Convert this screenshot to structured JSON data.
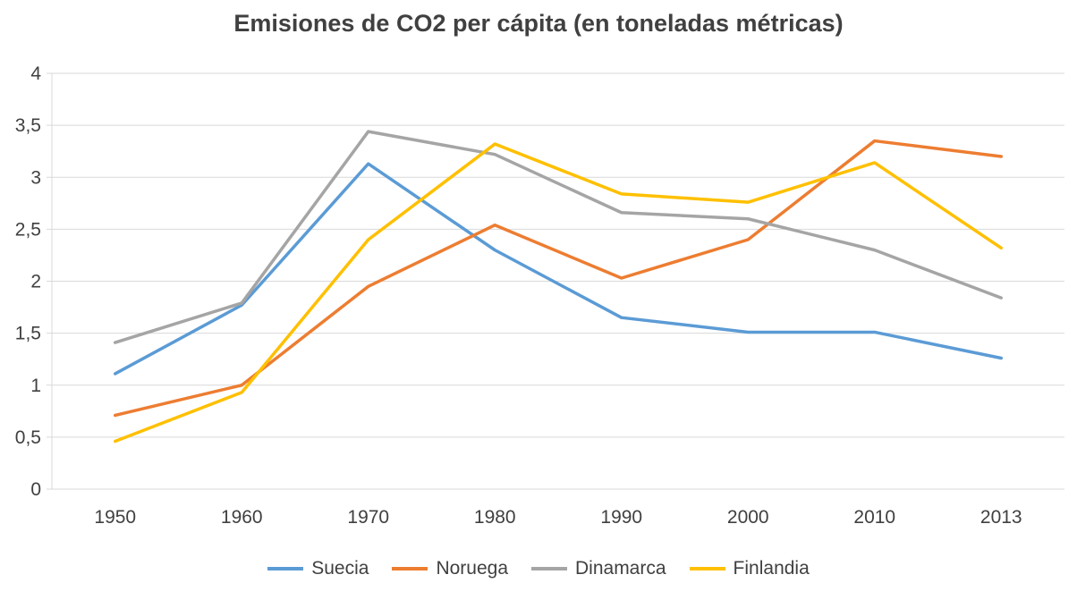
{
  "chart_data": {
    "type": "line",
    "title": "Emisiones de CO2 per cápita (en toneladas métricas)",
    "categories": [
      "1950",
      "1960",
      "1970",
      "1980",
      "1990",
      "2000",
      "2010",
      "2013"
    ],
    "series": [
      {
        "name": "Suecia",
        "color": "#5B9BD5",
        "values": [
          1.11,
          1.77,
          3.13,
          2.3,
          1.65,
          1.51,
          1.51,
          1.26
        ]
      },
      {
        "name": "Noruega",
        "color": "#ED7D31",
        "values": [
          0.71,
          1.0,
          1.95,
          2.54,
          2.03,
          2.4,
          3.35,
          3.2
        ]
      },
      {
        "name": "Dinamarca",
        "color": "#A5A5A5",
        "values": [
          1.41,
          1.79,
          3.44,
          3.22,
          2.66,
          2.6,
          2.3,
          1.84
        ]
      },
      {
        "name": "Finlandia",
        "color": "#FFC000",
        "values": [
          0.46,
          0.93,
          2.4,
          3.32,
          2.84,
          2.76,
          3.14,
          2.32
        ]
      }
    ],
    "xlabel": "",
    "ylabel": "",
    "ylim": [
      0,
      4
    ],
    "ytick_step": 0.5,
    "ytick_labels": [
      "0",
      "0,5",
      "1",
      "1,5",
      "2",
      "2,5",
      "3",
      "3,5",
      "4"
    ],
    "grid": true,
    "legend_position": "bottom",
    "colors": {
      "grid": "#D9D9D9",
      "axis": "#D9D9D9",
      "text": "#404040",
      "background": "#FFFFFF"
    }
  }
}
